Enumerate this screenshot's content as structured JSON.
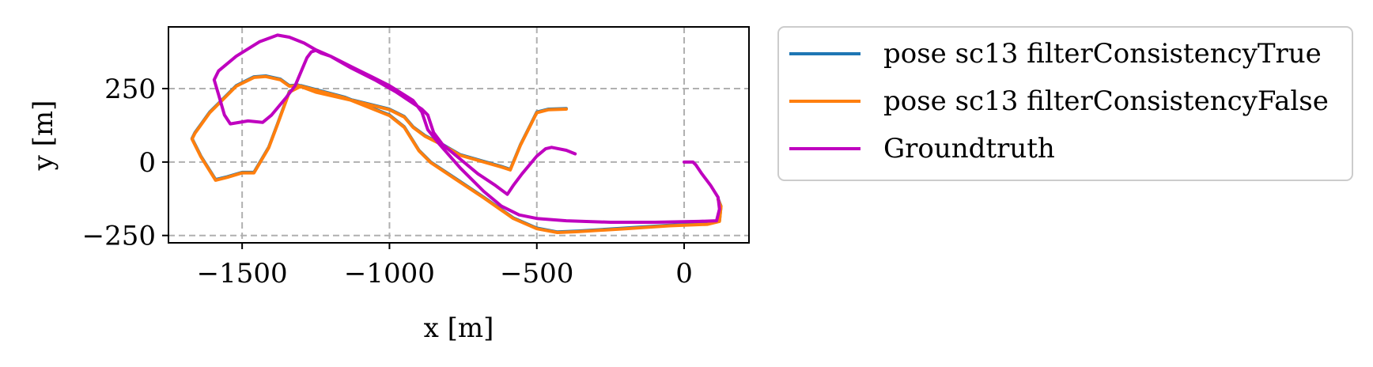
{
  "chart_data": {
    "type": "line",
    "xlabel": "x [m]",
    "ylabel": "y [m]",
    "xlim": [
      -1750,
      220
    ],
    "ylim": [
      -275,
      460
    ],
    "xticks": [
      -1500,
      -1000,
      -500,
      0
    ],
    "xtick_labels": [
      "−1500",
      "−1000",
      "−500",
      "0"
    ],
    "yticks": [
      -250,
      0,
      250
    ],
    "ytick_labels": [
      "−250",
      "0",
      "250"
    ],
    "grid": true,
    "legend_position": "outside-right",
    "series": [
      {
        "name": "pose sc13 filterConsistencyTrue",
        "color": "#1f77b4",
        "points": [
          [
            -400,
            182
          ],
          [
            -460,
            180
          ],
          [
            -500,
            170
          ],
          [
            -520,
            130
          ],
          [
            -555,
            60
          ],
          [
            -590,
            -25
          ],
          [
            -620,
            -15
          ],
          [
            -760,
            25
          ],
          [
            -820,
            60
          ],
          [
            -880,
            90
          ],
          [
            -920,
            120
          ],
          [
            -950,
            155
          ],
          [
            -1000,
            180
          ],
          [
            -1120,
            210
          ],
          [
            -1250,
            240
          ],
          [
            -1310,
            262
          ],
          [
            -1340,
            260
          ],
          [
            -1370,
            282
          ],
          [
            -1420,
            293
          ],
          [
            -1460,
            290
          ],
          [
            -1520,
            260
          ],
          [
            -1610,
            170
          ],
          [
            -1660,
            100
          ],
          [
            -1670,
            80
          ],
          [
            -1640,
            20
          ],
          [
            -1590,
            -60
          ],
          [
            -1550,
            -50
          ],
          [
            -1500,
            -35
          ],
          [
            -1460,
            -35
          ],
          [
            -1410,
            50
          ],
          [
            -1380,
            130
          ],
          [
            -1340,
            240
          ],
          [
            -1300,
            260
          ],
          [
            -1150,
            220
          ],
          [
            -1000,
            160
          ],
          [
            -950,
            120
          ],
          [
            -900,
            40
          ],
          [
            -860,
            0
          ],
          [
            -770,
            -60
          ],
          [
            -680,
            -120
          ],
          [
            -580,
            -190
          ],
          [
            -500,
            -225
          ],
          [
            -430,
            -238
          ],
          [
            -360,
            -235
          ],
          [
            -200,
            -225
          ],
          [
            -50,
            -215
          ],
          [
            80,
            -210
          ],
          [
            120,
            -200
          ],
          [
            125,
            -150
          ],
          [
            115,
            -125
          ]
        ]
      },
      {
        "name": "pose sc13 filterConsistencyFalse",
        "color": "#ff7f0e",
        "points": [
          [
            -400,
            180
          ],
          [
            -460,
            178
          ],
          [
            -500,
            168
          ],
          [
            -520,
            128
          ],
          [
            -555,
            58
          ],
          [
            -590,
            -27
          ],
          [
            -620,
            -17
          ],
          [
            -760,
            23
          ],
          [
            -820,
            58
          ],
          [
            -880,
            88
          ],
          [
            -920,
            118
          ],
          [
            -950,
            153
          ],
          [
            -1000,
            178
          ],
          [
            -1120,
            208
          ],
          [
            -1250,
            238
          ],
          [
            -1310,
            260
          ],
          [
            -1340,
            258
          ],
          [
            -1370,
            280
          ],
          [
            -1420,
            291
          ],
          [
            -1460,
            288
          ],
          [
            -1520,
            258
          ],
          [
            -1610,
            168
          ],
          [
            -1660,
            98
          ],
          [
            -1670,
            78
          ],
          [
            -1640,
            18
          ],
          [
            -1590,
            -62
          ],
          [
            -1550,
            -52
          ],
          [
            -1500,
            -37
          ],
          [
            -1460,
            -37
          ],
          [
            -1410,
            48
          ],
          [
            -1380,
            128
          ],
          [
            -1340,
            238
          ],
          [
            -1300,
            258
          ],
          [
            -1150,
            218
          ],
          [
            -1000,
            158
          ],
          [
            -950,
            118
          ],
          [
            -900,
            38
          ],
          [
            -860,
            -2
          ],
          [
            -770,
            -62
          ],
          [
            -680,
            -122
          ],
          [
            -580,
            -192
          ],
          [
            -500,
            -227
          ],
          [
            -430,
            -240
          ],
          [
            -360,
            -237
          ],
          [
            -200,
            -227
          ],
          [
            -50,
            -217
          ],
          [
            80,
            -212
          ],
          [
            120,
            -202
          ],
          [
            125,
            -152
          ],
          [
            115,
            -127
          ]
        ]
      },
      {
        "name": "Groundtruth",
        "color": "#bf00bf",
        "points": [
          [
            -370,
            28
          ],
          [
            -400,
            40
          ],
          [
            -450,
            50
          ],
          [
            -470,
            45
          ],
          [
            -500,
            20
          ],
          [
            -550,
            -40
          ],
          [
            -580,
            -80
          ],
          [
            -600,
            -110
          ],
          [
            -640,
            -80
          ],
          [
            -700,
            -40
          ],
          [
            -760,
            10
          ],
          [
            -820,
            60
          ],
          [
            -850,
            100
          ],
          [
            -870,
            160
          ],
          [
            -890,
            180
          ],
          [
            -920,
            200
          ],
          [
            -980,
            240
          ],
          [
            -1050,
            280
          ],
          [
            -1130,
            320
          ],
          [
            -1200,
            360
          ],
          [
            -1230,
            370
          ],
          [
            -1250,
            380
          ],
          [
            -1265,
            375
          ],
          [
            -1280,
            355
          ],
          [
            -1320,
            260
          ],
          [
            -1350,
            220
          ],
          [
            -1400,
            160
          ],
          [
            -1430,
            135
          ],
          [
            -1480,
            140
          ],
          [
            -1540,
            130
          ],
          [
            -1560,
            160
          ],
          [
            -1580,
            230
          ],
          [
            -1595,
            280
          ],
          [
            -1580,
            310
          ],
          [
            -1520,
            360
          ],
          [
            -1440,
            410
          ],
          [
            -1380,
            432
          ],
          [
            -1340,
            425
          ],
          [
            -1290,
            405
          ],
          [
            -1250,
            382
          ],
          [
            -1200,
            360
          ],
          [
            -1120,
            320
          ],
          [
            -1060,
            290
          ],
          [
            -1000,
            260
          ],
          [
            -960,
            235
          ],
          [
            -920,
            210
          ],
          [
            -890,
            170
          ],
          [
            -870,
            110
          ],
          [
            -830,
            60
          ],
          [
            -760,
            -20
          ],
          [
            -680,
            -100
          ],
          [
            -620,
            -150
          ],
          [
            -560,
            -180
          ],
          [
            -500,
            -192
          ],
          [
            -400,
            -200
          ],
          [
            -250,
            -205
          ],
          [
            -100,
            -205
          ],
          [
            50,
            -202
          ],
          [
            110,
            -200
          ],
          [
            120,
            -160
          ],
          [
            115,
            -120
          ],
          [
            90,
            -80
          ],
          [
            60,
            -40
          ],
          [
            40,
            -10
          ],
          [
            30,
            0
          ],
          [
            10,
            0
          ],
          [
            0,
            0
          ]
        ]
      }
    ]
  }
}
